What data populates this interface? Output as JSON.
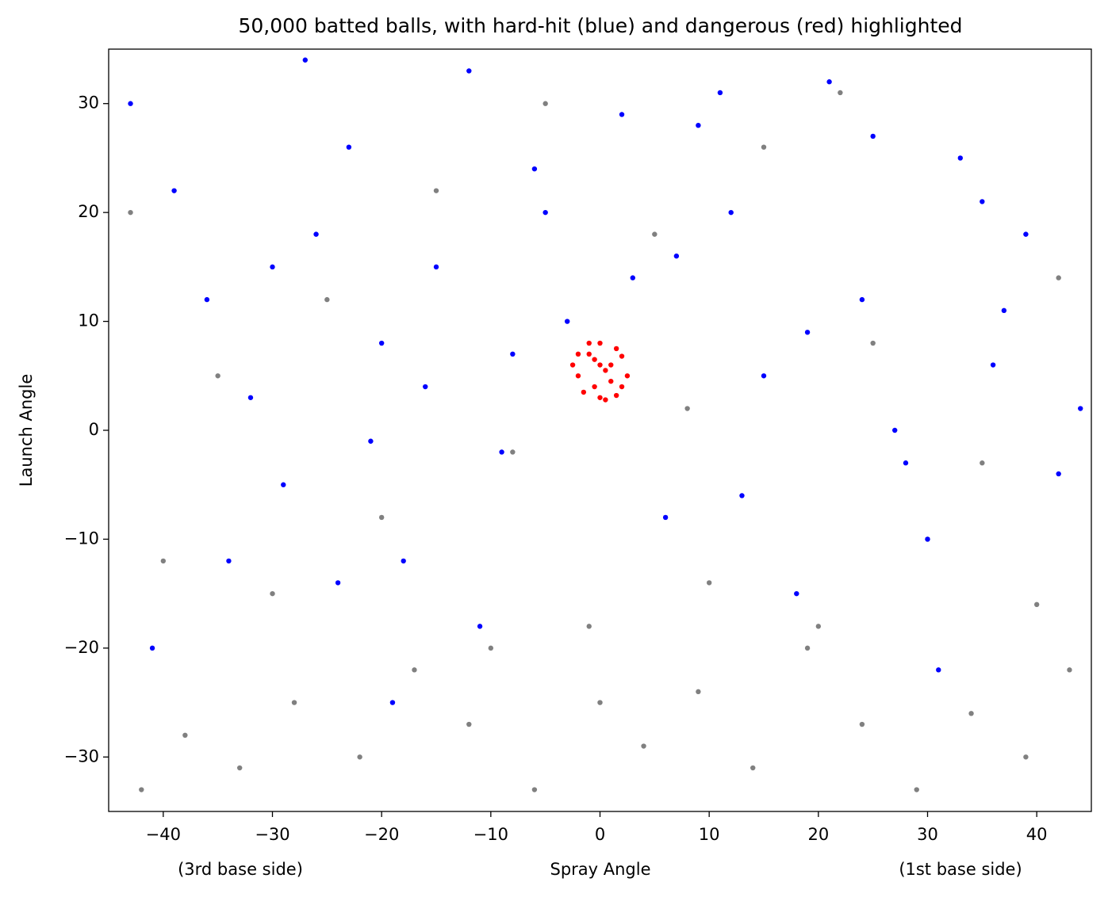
{
  "chart_data": {
    "type": "scatter",
    "title": "50,000 batted balls, with hard-hit (blue) and dangerous (red) highlighted",
    "xlabel": "Spray Angle",
    "ylabel": "Launch Angle",
    "annotations": [
      "(3rd base side)",
      "(1st base side)"
    ],
    "xlim": [
      -45,
      45
    ],
    "ylim": [
      -35,
      35
    ],
    "xticks": [
      {
        "value": -40,
        "label": "−40"
      },
      {
        "value": -30,
        "label": "−30"
      },
      {
        "value": -20,
        "label": "−20"
      },
      {
        "value": -10,
        "label": "−10"
      },
      0,
      10,
      20,
      30,
      40
    ],
    "yticks": [
      {
        "value": -30,
        "label": "−30"
      },
      {
        "value": -20,
        "label": "−20"
      },
      {
        "value": -10,
        "label": "−10"
      },
      0,
      10,
      20,
      30
    ],
    "series": [
      {
        "color": "#808080",
        "x": [
          -42,
          -38,
          -33,
          -28,
          -22,
          -17,
          -12,
          -6,
          -1,
          4,
          9,
          14,
          19,
          24,
          29,
          34,
          39,
          43,
          -40,
          -30,
          -20,
          -10,
          0,
          10,
          20,
          30,
          40,
          -35,
          -25,
          -15,
          -5,
          5,
          15,
          25,
          35,
          -43,
          -8,
          8,
          22,
          42
        ],
        "values": [
          -33,
          -28,
          -31,
          -25,
          -30,
          -22,
          -27,
          -33,
          -18,
          -29,
          -24,
          -31,
          -20,
          -27,
          -33,
          -26,
          -30,
          -22,
          -12,
          -15,
          -8,
          -20,
          -25,
          -14,
          -18,
          -10,
          -16,
          5,
          12,
          22,
          30,
          18,
          26,
          8,
          -3,
          20,
          -2,
          2,
          31,
          14
        ]
      },
      {
        "color": "#0000ff",
        "x": [
          -43,
          -39,
          -36,
          -32,
          -29,
          -26,
          -23,
          -20,
          -18,
          -15,
          -12,
          -9,
          -6,
          -3,
          3,
          6,
          9,
          12,
          15,
          18,
          21,
          24,
          27,
          30,
          33,
          36,
          39,
          42,
          -41,
          -34,
          -27,
          -21,
          -16,
          -11,
          -5,
          2,
          7,
          13,
          19,
          25,
          31,
          37,
          44,
          -30,
          -19,
          -8,
          11,
          28,
          35,
          -24
        ],
        "values": [
          30,
          22,
          12,
          3,
          -5,
          18,
          26,
          8,
          -12,
          15,
          33,
          -2,
          24,
          10,
          14,
          -8,
          28,
          20,
          5,
          -15,
          32,
          12,
          0,
          -10,
          25,
          6,
          18,
          -4,
          -20,
          -12,
          34,
          -1,
          4,
          -18,
          20,
          29,
          16,
          -6,
          9,
          27,
          -22,
          11,
          2,
          15,
          -25,
          7,
          31,
          -3,
          21,
          -14
        ]
      },
      {
        "color": "#ff0000",
        "x": [
          -2,
          -1,
          0,
          1,
          2,
          -1.5,
          0.5,
          1.5,
          -0.5,
          2.5,
          -2.5,
          0,
          1,
          -1,
          0.5,
          -2,
          2,
          -0.5,
          1.5,
          0
        ],
        "values": [
          5,
          7,
          8,
          6,
          4,
          3.5,
          5.5,
          7.5,
          6.5,
          5,
          6,
          3,
          4.5,
          8,
          2.8,
          7,
          6.8,
          4,
          3.2,
          6
        ]
      }
    ]
  }
}
